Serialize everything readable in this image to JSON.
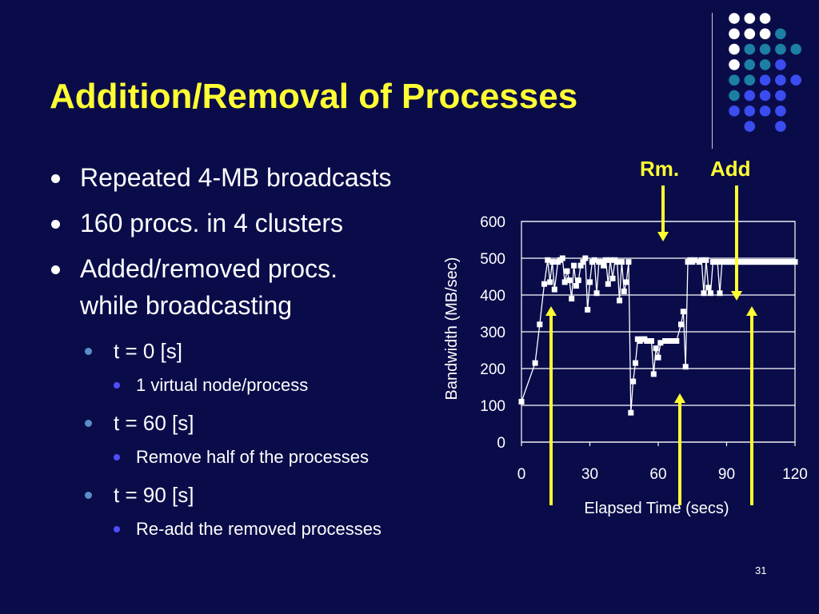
{
  "slide": {
    "title": "Addition/Removal of Processes",
    "page_number": "31"
  },
  "bullets": [
    {
      "text": "Repeated 4-MB broadcasts"
    },
    {
      "text": "160 procs. in 4 clusters"
    },
    {
      "line1": "Added/removed procs.",
      "line2": "while broadcasting"
    }
  ],
  "sub_bullets": [
    {
      "text": "t = 0 [s]",
      "detail": "1 virtual node/process"
    },
    {
      "text": "t = 60 [s]",
      "detail": "Remove half of the processes"
    },
    {
      "text": "t = 90 [s]",
      "detail": "Re-add the removed processes"
    }
  ],
  "annotations": {
    "remove_label": "Rm.",
    "add_label": "Add",
    "color": "#ffff33"
  },
  "chart_data": {
    "type": "line",
    "xlabel": "Elapsed Time (secs)",
    "ylabel": "Bandwidth (MB/sec)",
    "xlim": [
      0,
      120
    ],
    "ylim": [
      0,
      600
    ],
    "x_ticks": [
      0,
      30,
      60,
      90,
      120
    ],
    "y_ticks": [
      0,
      100,
      200,
      300,
      400,
      500,
      600
    ],
    "grid": "horizontal",
    "line_color": "#ffffff",
    "marker": "square",
    "series": [
      {
        "x": [
          0,
          6,
          8,
          10,
          11.5,
          12.5,
          13.5,
          14.5,
          16,
          17,
          18,
          19,
          20,
          21,
          22,
          23,
          24,
          25,
          26,
          27,
          28,
          29,
          30,
          31,
          32,
          33,
          34,
          35,
          36,
          37,
          38,
          39,
          40,
          41,
          42,
          43,
          44,
          45,
          46,
          47,
          48,
          49,
          50,
          51,
          52,
          53,
          54,
          55,
          56,
          57,
          58,
          59,
          60,
          61,
          63,
          65,
          67,
          68,
          70,
          71,
          72,
          73,
          74,
          75,
          76,
          78,
          79,
          80,
          81,
          82,
          83,
          84,
          85,
          86,
          87,
          88,
          89,
          90,
          91,
          92,
          93,
          94,
          95,
          96,
          97,
          98,
          99,
          100,
          101,
          102,
          103,
          104,
          105,
          106,
          107,
          108,
          109,
          110,
          111,
          112,
          113,
          114,
          115,
          116,
          117,
          118,
          119,
          120
        ],
        "y": [
          110,
          215,
          320,
          430,
          495,
          435,
          490,
          415,
          490,
          495,
          500,
          435,
          465,
          440,
          390,
          480,
          425,
          440,
          480,
          490,
          500,
          360,
          435,
          490,
          495,
          405,
          490,
          490,
          480,
          495,
          430,
          495,
          445,
          495,
          490,
          385,
          490,
          410,
          435,
          490,
          80,
          165,
          215,
          280,
          275,
          280,
          280,
          275,
          275,
          275,
          185,
          255,
          230,
          270,
          275,
          275,
          275,
          275,
          320,
          355,
          205,
          490,
          495,
          490,
          495,
          490,
          495,
          405,
          495,
          420,
          405,
          490,
          490,
          490,
          405,
          490,
          490,
          490,
          490,
          490,
          490,
          490,
          490,
          490,
          490,
          490,
          490,
          490,
          490,
          490,
          490,
          490,
          490,
          490,
          490,
          490,
          490,
          490,
          490,
          490,
          490,
          490,
          490,
          490,
          490,
          490,
          490,
          490
        ]
      }
    ]
  }
}
